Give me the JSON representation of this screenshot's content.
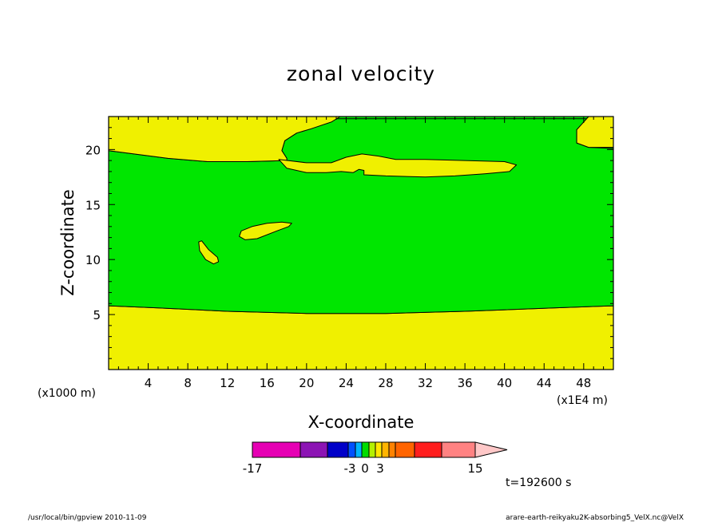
{
  "chart_data": {
    "type": "heatmap",
    "title": "zonal velocity",
    "xlabel": "X-coordinate",
    "ylabel": "Z-coordinate",
    "x_unit_note": "(x1E4 m)",
    "y_unit_note": "(x1000 m)",
    "xlim": [
      0,
      51
    ],
    "ylim": [
      0,
      23
    ],
    "x_ticks": [
      4,
      8,
      12,
      16,
      20,
      24,
      28,
      32,
      36,
      40,
      44,
      48
    ],
    "y_ticks": [
      5,
      10,
      15,
      20
    ],
    "colors": {
      "green": "#00e600",
      "yellow": "#f0f000",
      "outline": "#000000"
    },
    "regions": [
      {
        "name": "bottom yellow layer",
        "color": "yellow",
        "points": [
          [
            0,
            0
          ],
          [
            51,
            0
          ],
          [
            51,
            5.8
          ],
          [
            45,
            5.6
          ],
          [
            36,
            5.3
          ],
          [
            28,
            5.1
          ],
          [
            20,
            5.1
          ],
          [
            12,
            5.3
          ],
          [
            5,
            5.6
          ],
          [
            0,
            5.8
          ]
        ]
      },
      {
        "name": "upper green layer",
        "color": "green",
        "points": [
          [
            0,
            19.9
          ],
          [
            6,
            19.2
          ],
          [
            10,
            18.9
          ],
          [
            14,
            18.9
          ],
          [
            18,
            19.0
          ],
          [
            18,
            19.2
          ],
          [
            17.5,
            19.9
          ],
          [
            17.8,
            20.8
          ],
          [
            19,
            21.5
          ],
          [
            20.5,
            21.9
          ],
          [
            21.5,
            22.3
          ],
          [
            23,
            22.8
          ],
          [
            51,
            22.8
          ],
          [
            51,
            20.1
          ],
          [
            48.5,
            20.2
          ],
          [
            47.3,
            20.6
          ],
          [
            47.3,
            21.8
          ],
          [
            48.5,
            22.8
          ],
          [
            51,
            22.8
          ],
          [
            51,
            5.8
          ],
          [
            45,
            5.6
          ],
          [
            36,
            5.3
          ],
          [
            28,
            5.1
          ],
          [
            20,
            5.1
          ],
          [
            12,
            5.3
          ],
          [
            5,
            5.6
          ],
          [
            0,
            5.8
          ]
        ]
      },
      {
        "name": "top-left yellow",
        "color": "yellow",
        "points": [
          [
            0,
            23
          ],
          [
            23.4,
            23
          ],
          [
            22.5,
            22.5
          ],
          [
            20.5,
            21.9
          ],
          [
            19,
            21.5
          ],
          [
            17.8,
            20.8
          ],
          [
            17.5,
            19.9
          ],
          [
            18,
            19.2
          ],
          [
            18,
            19.0
          ],
          [
            14,
            18.9
          ],
          [
            10,
            18.9
          ],
          [
            6,
            19.2
          ],
          [
            0,
            19.9
          ]
        ]
      },
      {
        "name": "top-right yellow",
        "color": "yellow",
        "points": [
          [
            48.5,
            23
          ],
          [
            51,
            23
          ],
          [
            51,
            20.2
          ],
          [
            48.5,
            20.2
          ],
          [
            47.3,
            20.6
          ],
          [
            47.3,
            21.8
          ]
        ]
      },
      {
        "name": "yellow tongue",
        "color": "yellow",
        "points": [
          [
            17.2,
            19.1
          ],
          [
            20,
            18.8
          ],
          [
            22.5,
            18.8
          ],
          [
            24,
            19.3
          ],
          [
            25.6,
            19.6
          ],
          [
            27.3,
            19.4
          ],
          [
            29,
            19.1
          ],
          [
            32,
            19.1
          ],
          [
            36,
            19.0
          ],
          [
            40,
            18.9
          ],
          [
            41.2,
            18.6
          ],
          [
            40.5,
            18.0
          ],
          [
            38,
            17.8
          ],
          [
            35,
            17.6
          ],
          [
            32,
            17.5
          ],
          [
            28,
            17.6
          ],
          [
            25.8,
            17.7
          ],
          [
            25.8,
            18.1
          ],
          [
            25.3,
            18.2
          ],
          [
            24.7,
            17.9
          ],
          [
            23.5,
            18.0
          ],
          [
            22,
            17.9
          ],
          [
            20,
            17.9
          ],
          [
            18,
            18.3
          ]
        ]
      },
      {
        "name": "small yellow oval",
        "color": "yellow",
        "points": [
          [
            13.2,
            12.1
          ],
          [
            13.4,
            12.6
          ],
          [
            14.5,
            13.0
          ],
          [
            16,
            13.3
          ],
          [
            17.5,
            13.4
          ],
          [
            18.5,
            13.3
          ],
          [
            18.2,
            13.0
          ],
          [
            17,
            12.6
          ],
          [
            15,
            11.9
          ],
          [
            13.8,
            11.8
          ]
        ]
      },
      {
        "name": "small yellow blob",
        "color": "yellow",
        "points": [
          [
            9.1,
            11.6
          ],
          [
            9.4,
            11.7
          ],
          [
            10.1,
            10.9
          ],
          [
            11.0,
            10.2
          ],
          [
            11.1,
            9.8
          ],
          [
            10.6,
            9.6
          ],
          [
            9.8,
            10.0
          ],
          [
            9.2,
            10.8
          ]
        ]
      }
    ],
    "colorbar": {
      "colors": [
        "#e600b4",
        "#8c14b4",
        "#0000c8",
        "#0050ff",
        "#00b4ff",
        "#00dc00",
        "#b4f000",
        "#ffe600",
        "#ffb400",
        "#ff8200",
        "#ff6400",
        "#ff1e1e",
        "#ff8282",
        "#ffc8c8"
      ],
      "labels": [
        "-17",
        "-3",
        "0",
        "3",
        "15"
      ]
    },
    "time_label": "t=192600 s"
  },
  "footer": {
    "left": "/usr/local/bin/gpview   2010-11-09",
    "right": "arare-earth-reikyaku2K-absorbing5_VelX.nc@VelX"
  }
}
